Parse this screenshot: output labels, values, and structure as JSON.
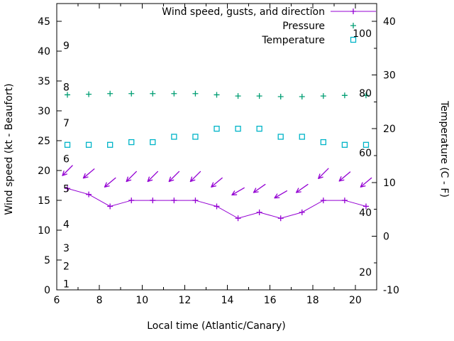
{
  "chart_data": {
    "type": "line",
    "title": "",
    "x_hours": [
      6.5,
      7.5,
      8.5,
      9.5,
      10.5,
      11.5,
      12.5,
      13.5,
      14.5,
      15.5,
      16.5,
      17.5,
      18.5,
      19.5,
      20.5
    ],
    "series": [
      {
        "name": "wind-speed",
        "legend_label": "Wind speed, gusts, and direction",
        "type": "line+marker",
        "marker": "plus",
        "axis": "left",
        "color": "#9400d3",
        "values_kt": [
          17,
          16,
          14,
          15,
          15,
          15,
          15,
          14,
          12,
          13,
          12,
          13,
          15,
          15,
          14
        ]
      },
      {
        "name": "wind-gust-direction-arrows",
        "type": "arrows",
        "marker": "arrow",
        "axis": "left",
        "color": "#9400d3",
        "values_kt": [
          20,
          19.5,
          18,
          19,
          19,
          19,
          19,
          18,
          16.5,
          17,
          16,
          17,
          19.5,
          19,
          18
        ],
        "arrow_angles_deg": [
          135,
          140,
          140,
          135,
          135,
          135,
          135,
          140,
          150,
          145,
          150,
          145,
          135,
          140,
          140
        ]
      },
      {
        "name": "pressure",
        "legend_label": "Pressure",
        "type": "marker",
        "marker": "plus",
        "axis": "left",
        "color": "#009e73",
        "values_kt": [
          32.7,
          32.8,
          32.9,
          32.9,
          32.9,
          32.9,
          32.9,
          32.7,
          32.5,
          32.5,
          32.4,
          32.4,
          32.5,
          32.6,
          32.6
        ]
      },
      {
        "name": "temperature",
        "legend_label": "Temperature",
        "type": "marker",
        "marker": "open-square",
        "axis": "right",
        "color": "#00b4c8",
        "values_c": [
          17,
          17,
          17,
          17.5,
          17.5,
          18.5,
          18.5,
          20,
          20,
          20,
          18.5,
          18.5,
          17.5,
          17,
          17
        ]
      }
    ],
    "x_axis": {
      "label": "Local time (Atlantic/Canary)",
      "min": 6,
      "max": 21,
      "major_ticks": [
        6,
        8,
        10,
        12,
        14,
        16,
        18,
        20
      ]
    },
    "y_left_axis": {
      "label": "Wind speed (kt - Beaufort)",
      "min": 0,
      "max": 48,
      "ticks": [
        0,
        5,
        10,
        15,
        20,
        25,
        30,
        35,
        40,
        45
      ],
      "beaufort_scale_labels": [
        {
          "beaufort": "1",
          "kt": 1
        },
        {
          "beaufort": "2",
          "kt": 4
        },
        {
          "beaufort": "3",
          "kt": 7
        },
        {
          "beaufort": "4",
          "kt": 11
        },
        {
          "beaufort": "5",
          "kt": 17
        },
        {
          "beaufort": "6",
          "kt": 22
        },
        {
          "beaufort": "7",
          "kt": 28
        },
        {
          "beaufort": "8",
          "kt": 34
        },
        {
          "beaufort": "9",
          "kt": 41
        }
      ]
    },
    "y_right_axis": {
      "label": "Temperature (C - F)",
      "min_c": -10,
      "max_c": 43.3,
      "ticks_c": [
        -10,
        0,
        10,
        20,
        30,
        40
      ],
      "fahrenheit_labels": [
        20,
        40,
        60,
        80,
        100
      ]
    },
    "legend": {
      "position": "top-right",
      "entries": [
        "Wind speed, gusts, and direction",
        "Pressure",
        "Temperature"
      ]
    },
    "grid": false
  }
}
